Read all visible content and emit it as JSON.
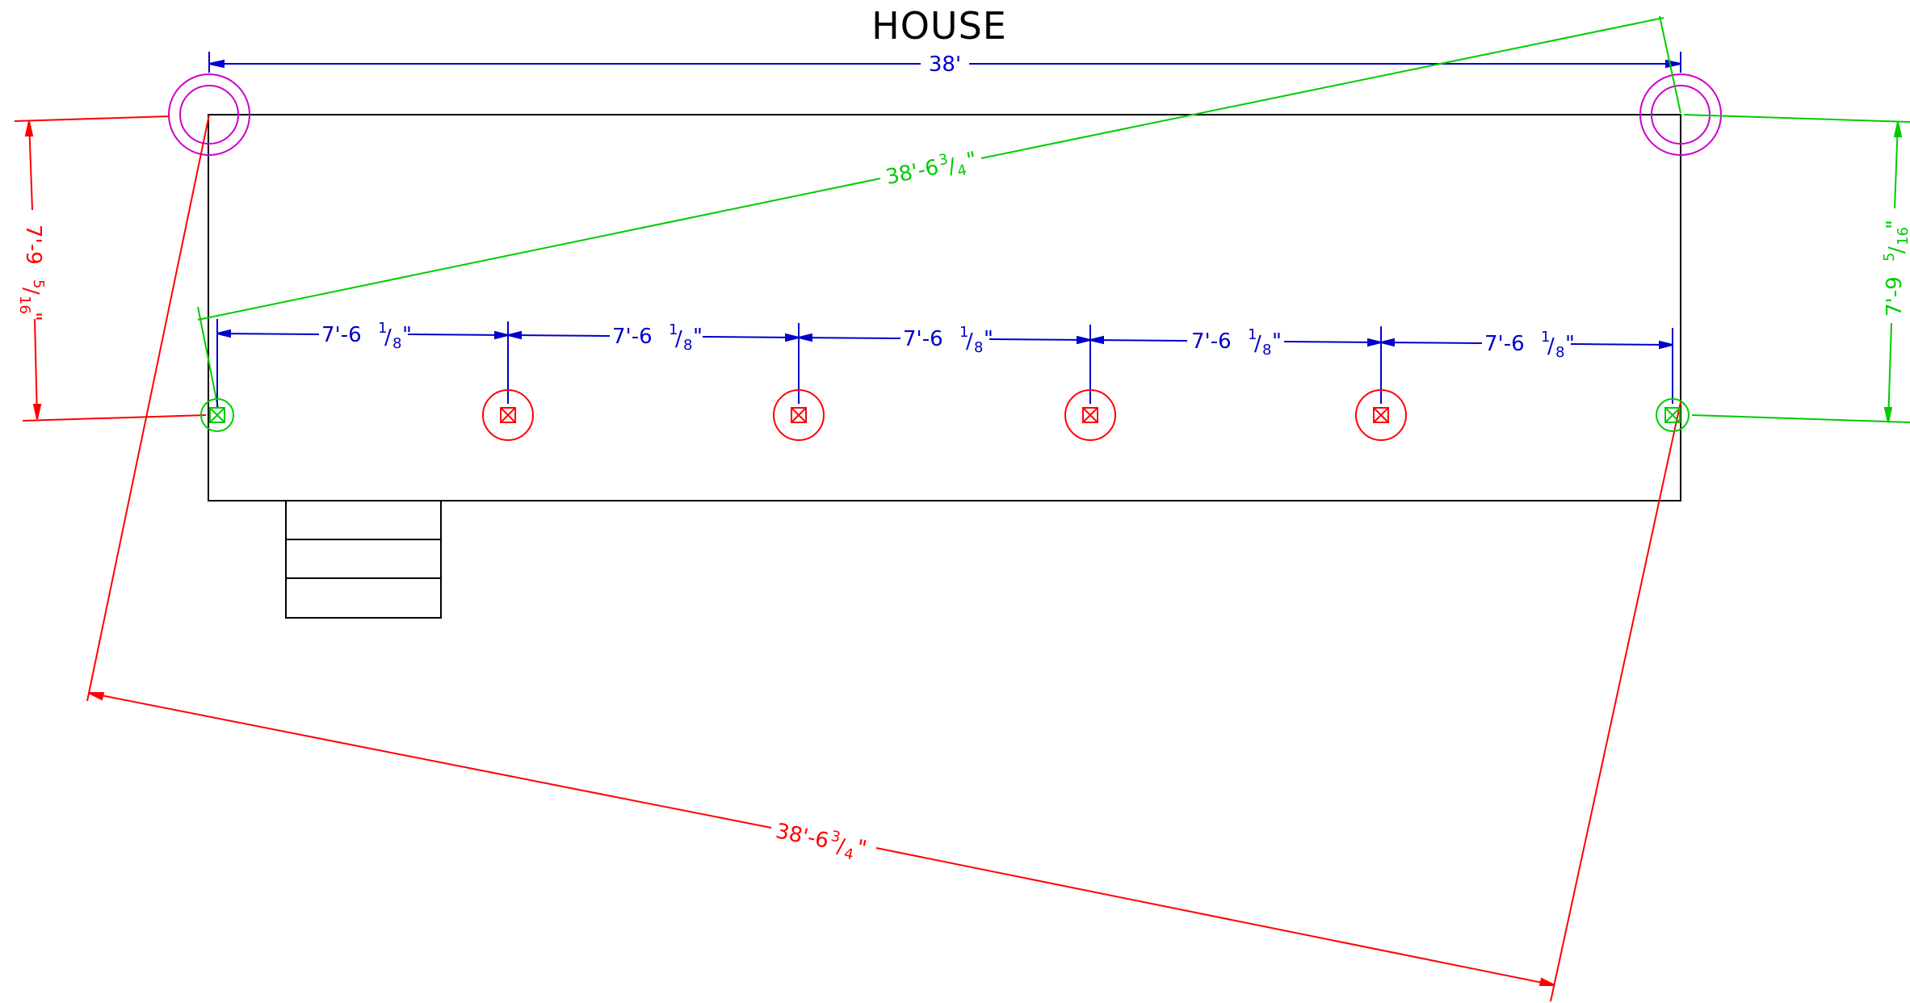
{
  "title": "HOUSE",
  "colors": {
    "outline": "#000000",
    "blue_dim": "#0000cc",
    "red_dim": "#ff0000",
    "green_dim": "#00cc00",
    "magenta": "#cc00cc"
  },
  "dimensions": {
    "overall_width": "38'",
    "diagonal_green": {
      "whole": "38'-6",
      "num": "3",
      "den": "4",
      "suffix": "\""
    },
    "diagonal_red": {
      "whole": "38'-6",
      "num": "3",
      "den": "4",
      "suffix": "\""
    },
    "left_offset": {
      "whole": "7'-9",
      "num": "5",
      "den": "16",
      "suffix": "\""
    },
    "right_offset": {
      "whole": "7'-9",
      "num": "5",
      "den": "16",
      "suffix": "\""
    },
    "post_spacing": [
      {
        "whole": "7'-6",
        "num": "1",
        "den": "8",
        "suffix": "\""
      },
      {
        "whole": "7'-6",
        "num": "1",
        "den": "8",
        "suffix": "\""
      },
      {
        "whole": "7'-6",
        "num": "1",
        "den": "8",
        "suffix": "\""
      },
      {
        "whole": "7'-6",
        "num": "1",
        "den": "8",
        "suffix": "\""
      },
      {
        "whole": "7'-6",
        "num": "1",
        "den": "8",
        "suffix": "\""
      }
    ]
  },
  "footings": {
    "corner_markers": 2,
    "interior_posts": 4,
    "end_posts": 2,
    "stair_treads": 3
  }
}
